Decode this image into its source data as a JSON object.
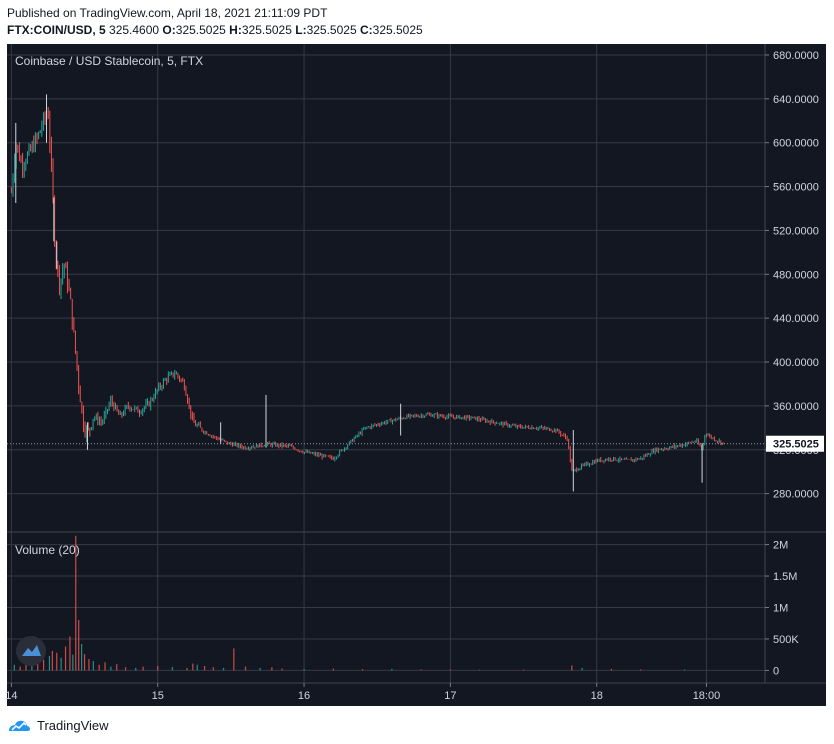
{
  "header": {
    "published": "Published on TradingView.com, April 18, 2021 21:11:09 PDT",
    "symbol": "FTX:COIN/USD, 5",
    "last": "325.4600",
    "ohlc": [
      {
        "k": "O:",
        "v": "325.5025"
      },
      {
        "k": "H:",
        "v": "325.5025"
      },
      {
        "k": "L:",
        "v": "325.5025"
      },
      {
        "k": "C:",
        "v": "325.5025"
      }
    ]
  },
  "chart_data": {
    "type": "candlestick",
    "title": "Coinbase / USD Stablecoin, 5, FTX",
    "price_axis": {
      "ylim": [
        245,
        690
      ],
      "ticks": [
        "680.0000",
        "640.0000",
        "600.0000",
        "560.0000",
        "520.0000",
        "480.0000",
        "440.0000",
        "400.0000",
        "360.0000",
        "320.0000",
        "280.0000"
      ],
      "tick_values": [
        680,
        640,
        600,
        560,
        520,
        480,
        440,
        400,
        360,
        320,
        280
      ]
    },
    "current_price": {
      "value": 325.5025,
      "label": "325.5025"
    },
    "x_axis": {
      "xlim": [
        13.97,
        19.15
      ],
      "ticks": [
        {
          "label": "14",
          "x": 14.0
        },
        {
          "label": "15",
          "x": 15.0
        },
        {
          "label": "16",
          "x": 16.0
        },
        {
          "label": "17",
          "x": 17.0
        },
        {
          "label": "18",
          "x": 18.0
        },
        {
          "label": "18:00",
          "x": 18.75
        }
      ]
    },
    "price_path": [
      [
        14.0,
        555
      ],
      [
        14.03,
        600
      ],
      [
        14.07,
        580
      ],
      [
        14.12,
        590
      ],
      [
        14.18,
        605
      ],
      [
        14.22,
        620
      ],
      [
        14.25,
        630
      ],
      [
        14.28,
        560
      ],
      [
        14.3,
        500
      ],
      [
        14.33,
        470
      ],
      [
        14.36,
        490
      ],
      [
        14.4,
        460
      ],
      [
        14.43,
        420
      ],
      [
        14.46,
        380
      ],
      [
        14.49,
        345
      ],
      [
        14.52,
        335
      ],
      [
        14.56,
        350
      ],
      [
        14.62,
        345
      ],
      [
        14.68,
        365
      ],
      [
        14.74,
        350
      ],
      [
        14.8,
        360
      ],
      [
        14.87,
        355
      ],
      [
        14.94,
        362
      ],
      [
        15.0,
        375
      ],
      [
        15.06,
        385
      ],
      [
        15.12,
        390
      ],
      [
        15.18,
        380
      ],
      [
        15.24,
        345
      ],
      [
        15.3,
        338
      ],
      [
        15.38,
        332
      ],
      [
        15.48,
        326
      ],
      [
        15.6,
        322
      ],
      [
        15.75,
        325
      ],
      [
        15.9,
        323
      ],
      [
        16.0,
        318
      ],
      [
        16.1,
        315
      ],
      [
        16.2,
        312
      ],
      [
        16.3,
        325
      ],
      [
        16.42,
        340
      ],
      [
        16.55,
        345
      ],
      [
        16.7,
        350
      ],
      [
        16.85,
        352
      ],
      [
        17.0,
        350
      ],
      [
        17.15,
        349
      ],
      [
        17.3,
        345
      ],
      [
        17.45,
        341
      ],
      [
        17.6,
        340
      ],
      [
        17.72,
        338
      ],
      [
        17.8,
        330
      ],
      [
        17.83,
        300
      ],
      [
        17.9,
        305
      ],
      [
        18.0,
        310
      ],
      [
        18.1,
        312
      ],
      [
        18.2,
        310
      ],
      [
        18.3,
        312
      ],
      [
        18.4,
        320
      ],
      [
        18.5,
        322
      ],
      [
        18.6,
        325
      ],
      [
        18.68,
        328
      ],
      [
        18.72,
        320
      ],
      [
        18.74,
        335
      ],
      [
        18.8,
        330
      ],
      [
        18.87,
        325.5
      ]
    ],
    "spikes": [
      {
        "x": 14.03,
        "high": 618,
        "low": 545
      },
      {
        "x": 14.24,
        "high": 644,
        "low": 600
      },
      {
        "x": 14.29,
        "high": 550,
        "low": 510
      },
      {
        "x": 14.31,
        "high": 510,
        "low": 485
      },
      {
        "x": 14.52,
        "high": 345,
        "low": 320
      },
      {
        "x": 15.43,
        "high": 345,
        "low": 325
      },
      {
        "x": 15.74,
        "high": 370,
        "low": 322
      },
      {
        "x": 16.66,
        "high": 362,
        "low": 333
      },
      {
        "x": 17.84,
        "high": 338,
        "low": 282
      },
      {
        "x": 18.72,
        "high": 326,
        "low": 290
      }
    ],
    "volume": {
      "label": "Volume (20)",
      "ylim": [
        -200000,
        2200000
      ],
      "ticks": [
        "2M",
        "1.5M",
        "1M",
        "500K",
        "0"
      ],
      "tick_values": [
        2000000,
        1500000,
        1000000,
        500000,
        0
      ],
      "bars": [
        [
          14.02,
          90000
        ],
        [
          14.06,
          60000
        ],
        [
          14.1,
          110000
        ],
        [
          14.14,
          70000
        ],
        [
          14.18,
          140000
        ],
        [
          14.22,
          170000
        ],
        [
          14.26,
          230000
        ],
        [
          14.28,
          310000
        ],
        [
          14.31,
          280000
        ],
        [
          14.34,
          200000
        ],
        [
          14.37,
          380000
        ],
        [
          14.4,
          540000
        ],
        [
          14.42,
          250000
        ],
        [
          14.44,
          2140000
        ],
        [
          14.46,
          800000
        ],
        [
          14.48,
          420000
        ],
        [
          14.5,
          260000
        ],
        [
          14.53,
          180000
        ],
        [
          14.56,
          150000
        ],
        [
          14.6,
          90000
        ],
        [
          14.64,
          130000
        ],
        [
          14.68,
          60000
        ],
        [
          14.72,
          100000
        ],
        [
          14.78,
          50000
        ],
        [
          14.85,
          40000
        ],
        [
          14.9,
          60000
        ],
        [
          15.0,
          70000
        ],
        [
          15.1,
          55000
        ],
        [
          15.2,
          40000
        ],
        [
          15.24,
          110000
        ],
        [
          15.27,
          90000
        ],
        [
          15.32,
          70000
        ],
        [
          15.38,
          50000
        ],
        [
          15.45,
          40000
        ],
        [
          15.52,
          350000
        ],
        [
          15.6,
          60000
        ],
        [
          15.7,
          40000
        ],
        [
          15.78,
          50000
        ],
        [
          15.85,
          30000
        ],
        [
          16.0,
          25000
        ],
        [
          16.2,
          30000
        ],
        [
          16.4,
          20000
        ],
        [
          16.6,
          25000
        ],
        [
          16.8,
          15000
        ],
        [
          17.0,
          15000
        ],
        [
          17.2,
          10000
        ],
        [
          17.5,
          12000
        ],
        [
          17.83,
          80000
        ],
        [
          17.9,
          40000
        ],
        [
          18.1,
          25000
        ],
        [
          18.3,
          15000
        ],
        [
          18.6,
          15000
        ]
      ]
    }
  },
  "colors": {
    "background": "#131722",
    "grid": "#363a45",
    "up": "#26a69a",
    "down": "#ef5350",
    "axis_text": "#d1d4dc",
    "price_line": "#ffffff"
  },
  "footer": {
    "brand": "TradingView"
  }
}
